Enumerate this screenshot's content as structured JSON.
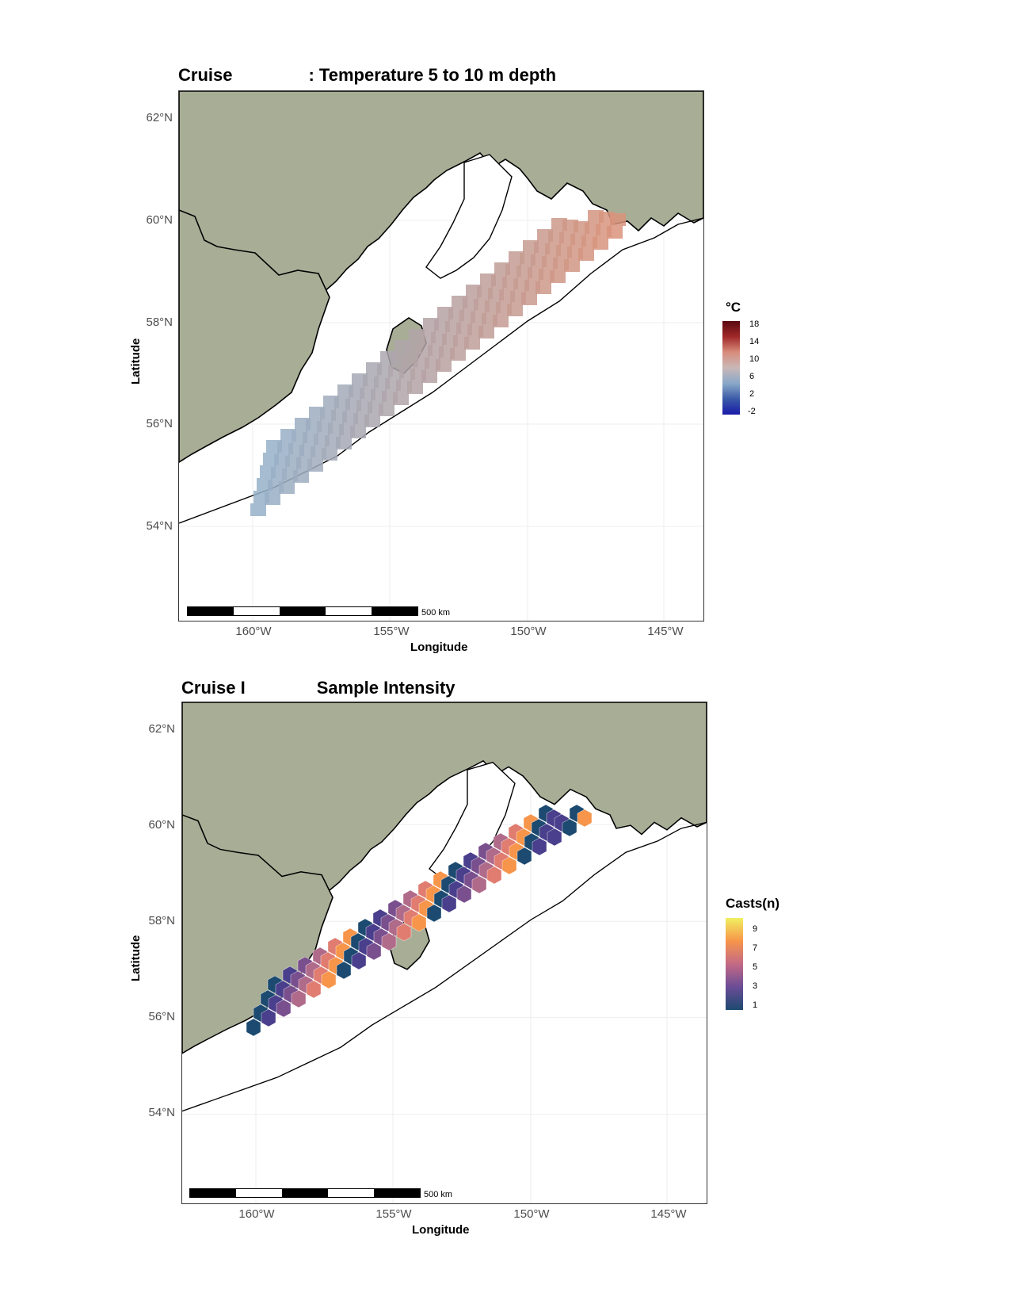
{
  "colors": {
    "land": "#a8ad96",
    "water": "#ffffff",
    "coast": "#000000",
    "grid": "#eeeeee"
  },
  "axes": {
    "lon_labels": [
      "160°W",
      "155°W",
      "150°W",
      "145°W"
    ],
    "lat_labels": [
      "62°N",
      "60°N",
      "58°N",
      "56°N",
      "54°N"
    ],
    "xlabel": "Longitude",
    "ylabel": "Latitude"
  },
  "scalebar_label": "500 km",
  "maps": [
    {
      "title_left": "Cruise",
      "title_right": ": Temperature 5 to 10 m depth",
      "legend": {
        "title": "°C",
        "labels": [
          "18",
          "14",
          "10",
          "6",
          "2",
          "-2"
        ],
        "gradient": [
          "#5a0a10",
          "#a02828",
          "#d88c7c",
          "#c9b8b8",
          "#8aa8c8",
          "#3a5aa8",
          "#1a1aa8"
        ]
      },
      "layer_type": "temperature grid",
      "visible_range_c": [
        6,
        12
      ]
    },
    {
      "title_left": "Cruise I",
      "title_right": "Sample Intensity",
      "legend": {
        "title": "Casts(n)",
        "labels": [
          "9",
          "7",
          "5",
          "3",
          "1"
        ],
        "gradient": [
          "#f0f060",
          "#f7954a",
          "#c46a86",
          "#6a4c96",
          "#1c4a70"
        ]
      },
      "layer_type": "hexbin sample counts"
    }
  ]
}
